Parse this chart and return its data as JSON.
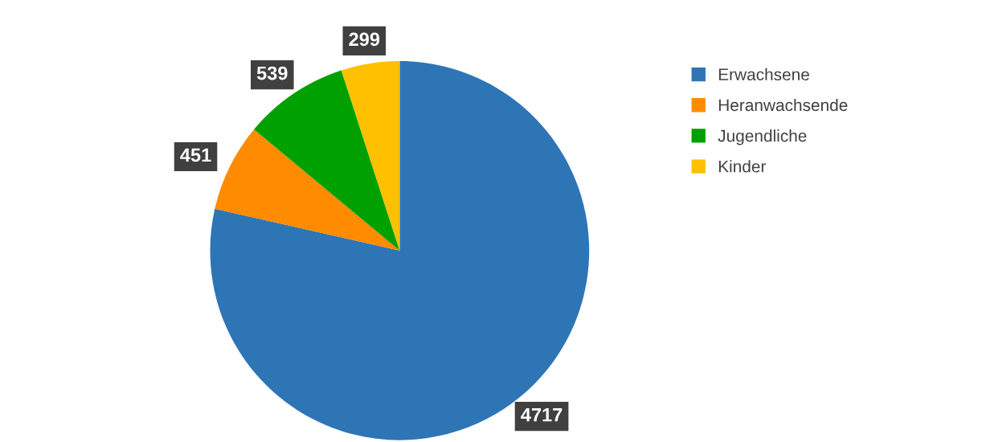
{
  "chart_data": {
    "type": "pie",
    "categories": [
      "Erwachsene",
      "Heranwachsende",
      "Jugendliche",
      "Kinder"
    ],
    "values": [
      4717,
      451,
      539,
      299
    ],
    "colors": [
      "#2e75b6",
      "#ff8c00",
      "#00a000",
      "#ffc000"
    ],
    "data_labels": true,
    "legend": "right"
  }
}
